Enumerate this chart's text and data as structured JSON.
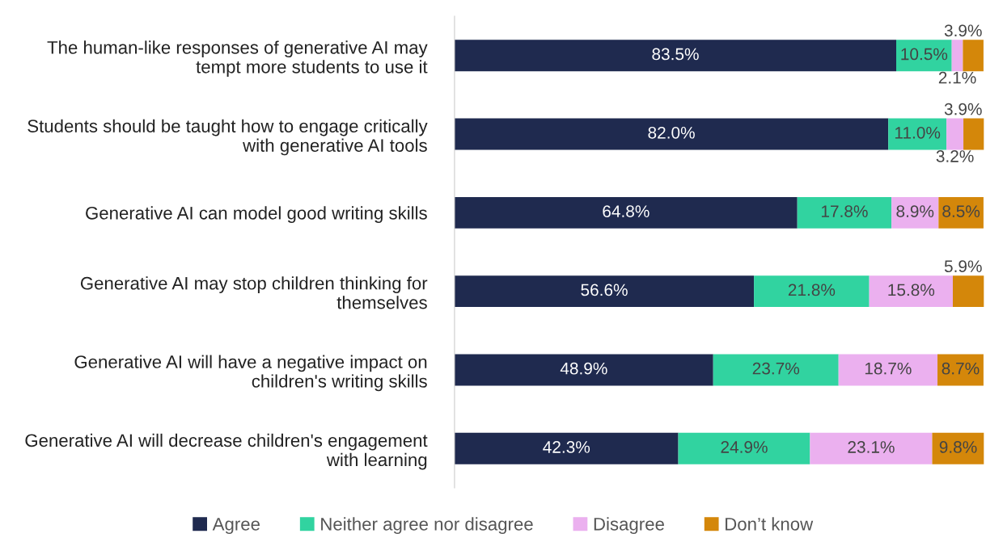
{
  "chart_data": {
    "type": "bar",
    "orientation": "horizontal",
    "stacked": true,
    "legend": "bottom",
    "grid": false,
    "categories": [
      "The human-like responses of generative AI may tempt more students to use it",
      "Students should be taught how to engage critically with generative AI tools",
      "Generative AI can model good writing skills",
      "Generative AI may stop children thinking for themselves",
      "Generative AI will have a negative impact on children's writing skills",
      "Generative AI will decrease children's engagement with learning"
    ],
    "series": [
      {
        "name": "Agree",
        "color": "#1f2a4f",
        "values": [
          83.5,
          82.0,
          64.8,
          56.6,
          48.9,
          42.3
        ],
        "value_labels": [
          "83.5%",
          "82.0%",
          "64.8%",
          "56.6%",
          "48.9%",
          "42.3%"
        ]
      },
      {
        "name": "Neither agree nor disagree",
        "color": "#31d3a0",
        "values": [
          10.5,
          11.0,
          17.8,
          21.8,
          23.7,
          24.9
        ],
        "value_labels": [
          "10.5%",
          "11.0%",
          "17.8%",
          "21.8%",
          "23.7%",
          "24.9%"
        ]
      },
      {
        "name": "Disagree",
        "color": "#ebb0ef",
        "values": [
          2.1,
          3.2,
          8.9,
          15.8,
          18.7,
          23.1
        ],
        "value_labels": [
          "2.1%",
          "3.2%",
          "8.9%",
          "15.8%",
          "18.7%",
          "23.1%"
        ]
      },
      {
        "name": "Don’t know",
        "color": "#d4870a",
        "values": [
          3.9,
          3.9,
          8.5,
          5.9,
          8.7,
          9.8
        ],
        "value_labels": [
          "3.9%",
          "3.9%",
          "8.5%",
          "5.9%",
          "8.7%",
          "9.8%"
        ]
      }
    ]
  }
}
